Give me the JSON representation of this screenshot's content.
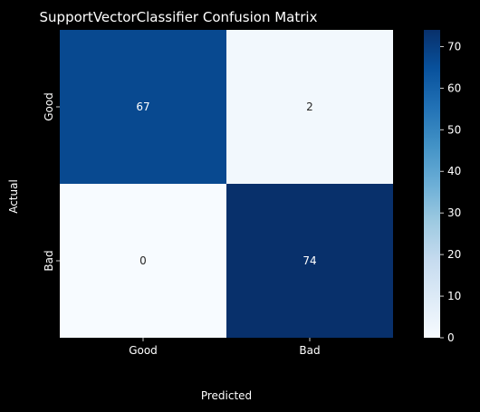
{
  "chart_data": {
    "type": "heatmap",
    "title": "SupportVectorClassifier Confusion Matrix",
    "xlabel": "Predicted",
    "ylabel": "Actual",
    "x_categories": [
      "Good",
      "Bad"
    ],
    "y_categories": [
      "Good",
      "Bad"
    ],
    "values": [
      [
        67,
        2
      ],
      [
        0,
        74
      ]
    ],
    "cell_labels": [
      [
        "67",
        "2"
      ],
      [
        "0",
        "74"
      ]
    ],
    "colormap": "Blues",
    "colorbar": {
      "range": [
        0,
        74
      ],
      "ticks": [
        0,
        10,
        20,
        30,
        40,
        50,
        60,
        70
      ],
      "tick_labels": [
        "0",
        "10",
        "20",
        "30",
        "40",
        "50",
        "60",
        "70"
      ]
    },
    "colors": {
      "background": "#000000",
      "text": "#ffffff",
      "dark_cell_text": "#ffffff",
      "light_cell_text": "#262626"
    }
  }
}
